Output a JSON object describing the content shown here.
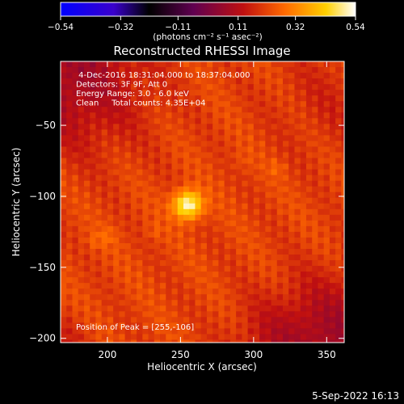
{
  "chart_data": {
    "type": "heatmap",
    "title": "Reconstructed RHESSI Image",
    "xlabel": "Heliocentric X (arcsec)",
    "ylabel": "Heliocentric Y (arcsec)",
    "xlim": [
      168,
      362
    ],
    "ylim": [
      -203,
      -5
    ],
    "x_ticks": [
      200,
      250,
      300,
      350
    ],
    "y_ticks": [
      -50,
      -100,
      -150,
      -200
    ],
    "x_tick_labels": [
      "200",
      "250",
      "300",
      "350"
    ],
    "y_tick_labels": [
      "−50",
      "−100",
      "−150",
      "−200"
    ],
    "colorbar": {
      "range": [
        -0.54,
        0.54
      ],
      "ticks": [
        -0.54,
        -0.32,
        -0.11,
        0.11,
        0.32,
        0.54
      ],
      "tick_labels": [
        "−0.54",
        "−0.32",
        "−0.11",
        "0.11",
        "0.32",
        "0.54"
      ],
      "units_label": "(photons cm⁻² s⁻¹ asec⁻²)",
      "colormap": [
        "#0000ff",
        "#3a00cc",
        "#000000",
        "#600050",
        "#c01010",
        "#ff6a00",
        "#ffd000",
        "#ffffff"
      ]
    },
    "info_lines": [
      " 4-Dec-2016 18:31:04.000 to 18:37:04.000",
      "Detectors: 3F 9F, Att 0",
      "Energy Range: 3.0 - 6.0 keV",
      "Clean     Total counts: 4.35E+04"
    ],
    "peak_label": "Position of Peak = [255,-106]",
    "peak": {
      "x": 255,
      "y": -106,
      "value": 0.54
    },
    "background_level": 0.22,
    "sources": [
      {
        "x": 255,
        "y": -106,
        "amp": 0.32,
        "sigma": 7
      },
      {
        "x": 200,
        "y": -128,
        "amp": 0.04,
        "sigma": 5
      },
      {
        "x": 316,
        "y": -80,
        "amp": 0.04,
        "sigma": 4
      },
      {
        "x": 232,
        "y": -125,
        "amp": 0.03,
        "sigma": 4
      },
      {
        "x": 190,
        "y": -132,
        "amp": 0.03,
        "sigma": 4
      },
      {
        "x": 292,
        "y": -75,
        "amp": 0.02,
        "sigma": 5
      }
    ],
    "dark_regions": [
      {
        "x": 175,
        "y": -15,
        "amp": 0.14,
        "sigma": 35
      },
      {
        "x": 355,
        "y": -200,
        "amp": 0.14,
        "sigma": 30
      },
      {
        "x": 310,
        "y": -205,
        "amp": 0.05,
        "sigma": 20
      },
      {
        "x": 355,
        "y": -30,
        "amp": 0.04,
        "sigma": 30
      },
      {
        "x": 172,
        "y": -200,
        "amp": 0.04,
        "sigma": 12
      }
    ]
  },
  "footer": {
    "timestamp": "5-Sep-2022 16:13"
  }
}
